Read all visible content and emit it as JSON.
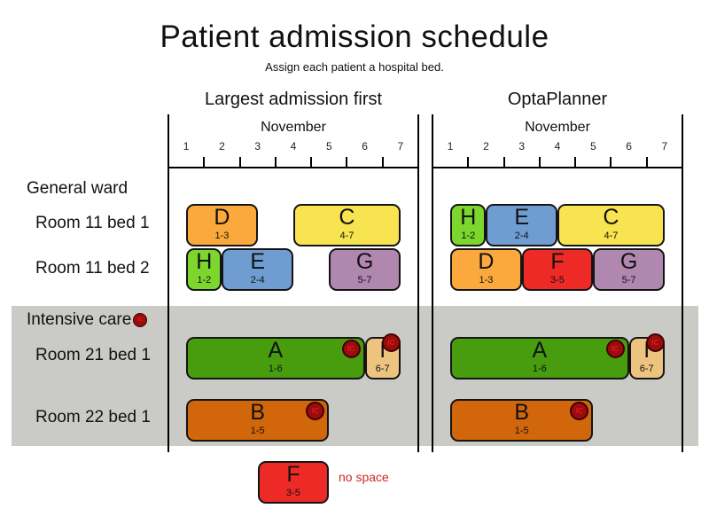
{
  "title": "Patient admission schedule",
  "subtitle": "Assign each patient a hospital bed.",
  "month_label": "November",
  "days": [
    "1",
    "2",
    "3",
    "4",
    "5",
    "6",
    "7"
  ],
  "ic_label": "IC",
  "row_labels": [
    {
      "text": "General ward",
      "group": true,
      "ic": false
    },
    {
      "text": "Room 11 bed 1",
      "group": false,
      "ic": false
    },
    {
      "text": "Room 11 bed 2",
      "group": false,
      "ic": false
    },
    {
      "text": "Intensive care",
      "group": true,
      "ic": true
    },
    {
      "text": "Room 21 bed 1",
      "group": false,
      "ic": false
    },
    {
      "text": "Room 22 bed 1",
      "group": false,
      "ic": false
    }
  ],
  "charts": [
    {
      "title": "Largest admission first",
      "blocks": [
        {
          "row": 0,
          "patient": "D",
          "range": "1-3",
          "color": "orange"
        },
        {
          "row": 0,
          "patient": "C",
          "range": "4-7",
          "color": "yellow"
        },
        {
          "row": 1,
          "patient": "H",
          "range": "1-2",
          "color": "green_light"
        },
        {
          "row": 1,
          "patient": "E",
          "range": "2-4",
          "color": "blue"
        },
        {
          "row": 1,
          "patient": "G",
          "range": "5-7",
          "color": "purple"
        },
        {
          "row": 2,
          "patient": "A",
          "range": "1-6",
          "color": "green_dark",
          "ic": "inside"
        },
        {
          "row": 2,
          "patient": "I",
          "range": "6-7",
          "color": "tan",
          "ic": "corner"
        },
        {
          "row": 3,
          "patient": "B",
          "range": "1-5",
          "color": "chocolate",
          "ic": "inside"
        }
      ]
    },
    {
      "title": "OptaPlanner",
      "blocks": [
        {
          "row": 0,
          "patient": "H",
          "range": "1-2",
          "color": "green_light"
        },
        {
          "row": 0,
          "patient": "E",
          "range": "2-4",
          "color": "blue"
        },
        {
          "row": 0,
          "patient": "C",
          "range": "4-7",
          "color": "yellow"
        },
        {
          "row": 1,
          "patient": "D",
          "range": "1-3",
          "color": "orange"
        },
        {
          "row": 1,
          "patient": "F",
          "range": "3-5",
          "color": "red"
        },
        {
          "row": 1,
          "patient": "G",
          "range": "5-7",
          "color": "purple"
        },
        {
          "row": 2,
          "patient": "A",
          "range": "1-6",
          "color": "green_dark",
          "ic": "inside"
        },
        {
          "row": 2,
          "patient": "I",
          "range": "6-7",
          "color": "tan",
          "ic": "corner"
        },
        {
          "row": 3,
          "patient": "B",
          "range": "1-5",
          "color": "chocolate",
          "ic": "inside"
        }
      ]
    }
  ],
  "unassigned": {
    "patient": "F",
    "range": "3-5",
    "color": "red",
    "note": "no space"
  },
  "colors": {
    "orange": "#fba93c",
    "yellow": "#f8e350",
    "green_light": "#7cd62d",
    "green_dark": "#479d0e",
    "blue": "#6f9dd1",
    "purple": "#af87af",
    "red": "#ee2a26",
    "tan": "#ecc37f",
    "chocolate": "#d2660a",
    "gray_band": "#cacac6",
    "ic_bg": "#9b0c0c",
    "ic_text": "#e31b1b",
    "no_space": "#cc2b2b"
  }
}
